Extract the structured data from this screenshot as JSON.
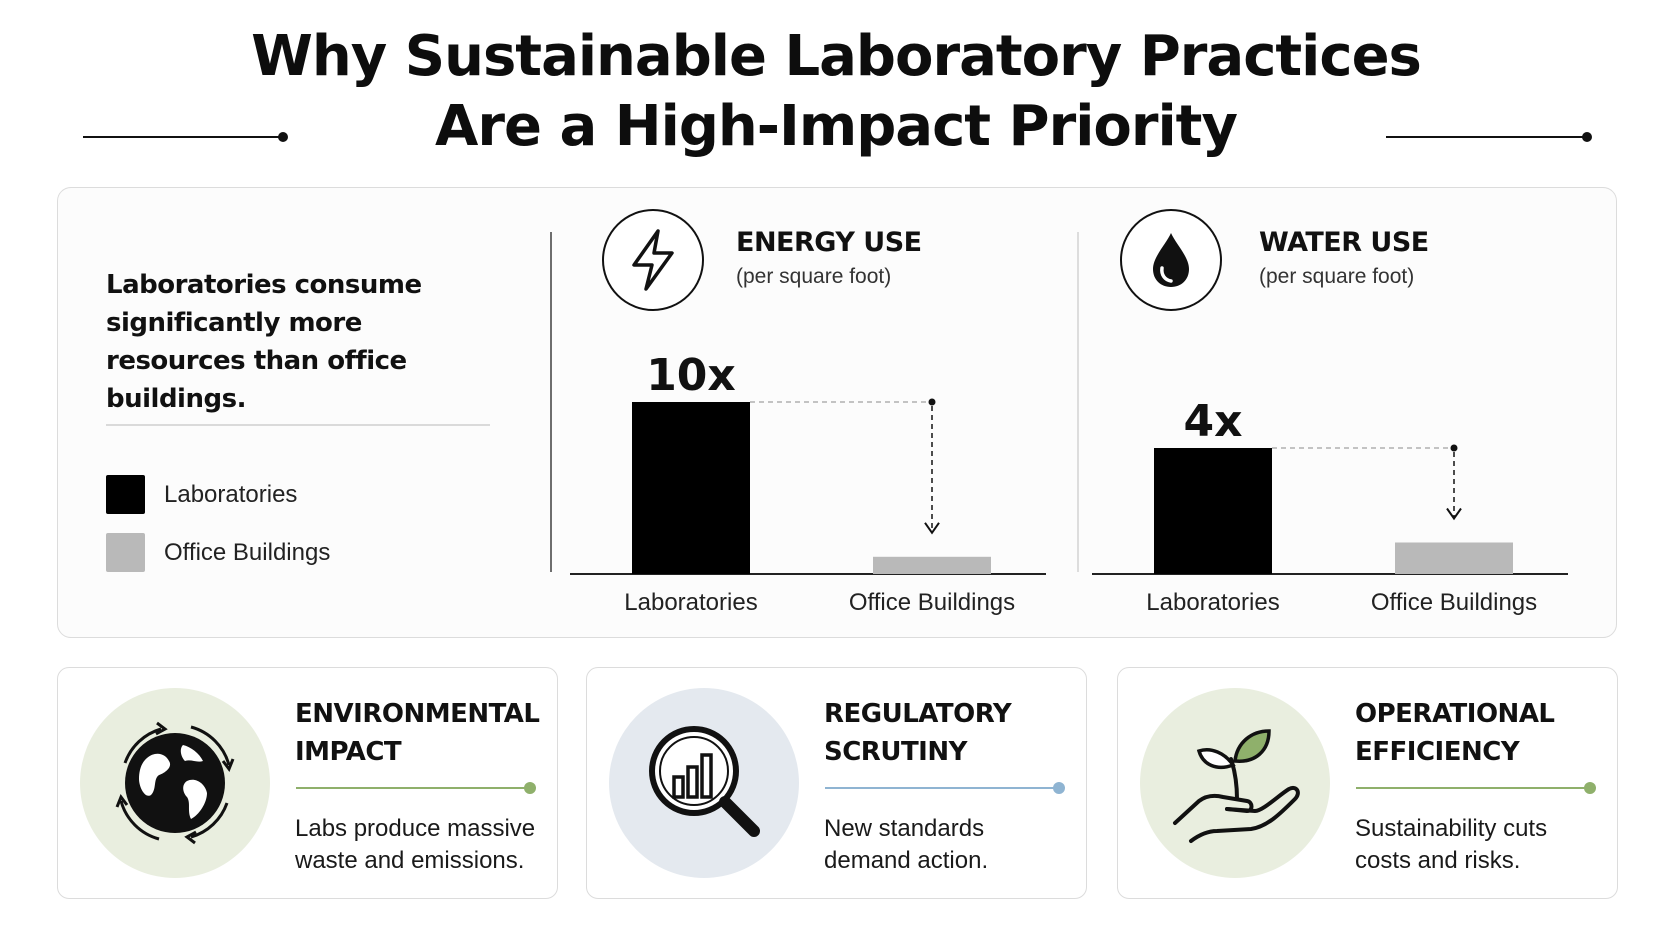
{
  "header": {
    "title_line1": "Why Sustainable Laboratory Practices",
    "title_line2": "Are a High-Impact Priority"
  },
  "intro": {
    "text": "Laboratories consume significantly more resources than office buildings."
  },
  "legend": [
    {
      "label": "Laboratories",
      "color": "#000000"
    },
    {
      "label": "Office Buildings",
      "color": "#b9b9b9"
    }
  ],
  "chart_data": [
    {
      "type": "bar",
      "title": "ENERGY USE",
      "subtitle": "(per square foot)",
      "icon": "lightning-bolt-icon",
      "categories": [
        "Laboratories",
        "Office Buildings"
      ],
      "values": [
        10,
        1
      ],
      "data_labels": [
        "10x",
        ""
      ],
      "colors": [
        "#000000",
        "#b9b9b9"
      ],
      "grid": false
    },
    {
      "type": "bar",
      "title": "WATER USE",
      "subtitle": "(per square foot)",
      "icon": "water-drop-icon",
      "categories": [
        "Laboratories",
        "Office Buildings"
      ],
      "values": [
        4,
        1
      ],
      "data_labels": [
        "4x",
        ""
      ],
      "colors": [
        "#000000",
        "#b9b9b9"
      ],
      "grid": false
    }
  ],
  "cards": [
    {
      "title_line1": "ENVIRONMENTAL",
      "title_line2": "IMPACT",
      "text_line1": "Labs produce massive",
      "text_line2": "waste and emissions.",
      "icon": "globe-recycle-icon",
      "accent": "#8fb06b",
      "circle_bg": "#e9eedf"
    },
    {
      "title_line1": "REGULATORY",
      "title_line2": "SCRUTINY",
      "text_line1": "New standards",
      "text_line2": "demand action.",
      "icon": "magnifier-chart-icon",
      "accent": "#8fb4d2",
      "circle_bg": "#e4e9ef"
    },
    {
      "title_line1": "OPERATIONAL",
      "title_line2": "EFFICIENCY",
      "text_line1": "Sustainability cuts",
      "text_line2": "costs and risks.",
      "icon": "hand-sprout-icon",
      "accent": "#8fb06b",
      "circle_bg": "#e9eedf"
    }
  ]
}
